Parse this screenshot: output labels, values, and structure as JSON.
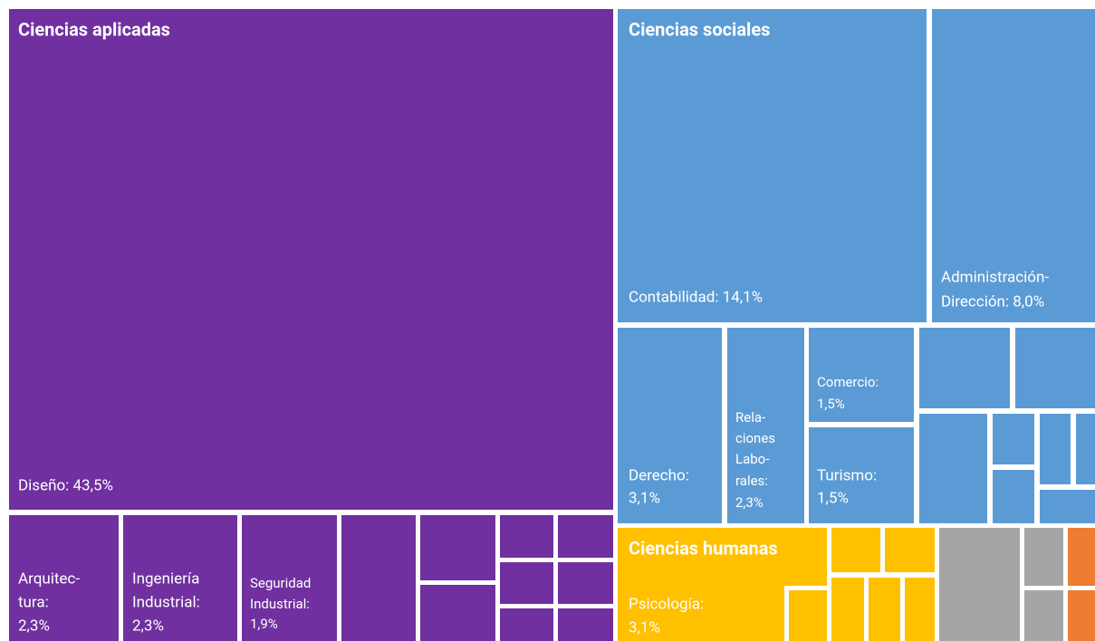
{
  "chart_data": {
    "type": "treemap",
    "groups": [
      {
        "name": "Ciencias aplicadas",
        "color": "#7030a0",
        "children": [
          {
            "label": [
              "Diseño: 43,5%"
            ],
            "value": 43.5
          },
          {
            "label": [
              "Arquitec-",
              "tura:",
              "2,3%"
            ],
            "value": 2.3
          },
          {
            "label": [
              "Ingeniería",
              "Industrial:",
              "2,3%"
            ],
            "value": 2.3
          },
          {
            "label": [
              "Seguridad",
              "Industrial:",
              "1,9%"
            ],
            "value": 1.9
          }
        ]
      },
      {
        "name": "Ciencias sociales",
        "color": "#5b9bd5",
        "children": [
          {
            "label": [
              "Contabilidad: 14,1%"
            ],
            "value": 14.1
          },
          {
            "label": [
              "Administración-",
              "Dirección: 8,0%"
            ],
            "value": 8.0
          },
          {
            "label": [
              "Derecho:",
              "3,1%"
            ],
            "value": 3.1
          },
          {
            "label": [
              "Rela-",
              "ciones",
              "Labo-",
              "rales:",
              "2,3%"
            ],
            "value": 2.3
          },
          {
            "label": [
              "Comercio:",
              "1,5%"
            ],
            "value": 1.5
          },
          {
            "label": [
              "Turismo:",
              "1,5%"
            ],
            "value": 1.5
          }
        ]
      },
      {
        "name": "Ciencias humanas",
        "color": "#ffc000",
        "children": [
          {
            "label": [
              "Psicología:",
              "3,1%"
            ],
            "value": 3.1
          }
        ]
      }
    ]
  }
}
